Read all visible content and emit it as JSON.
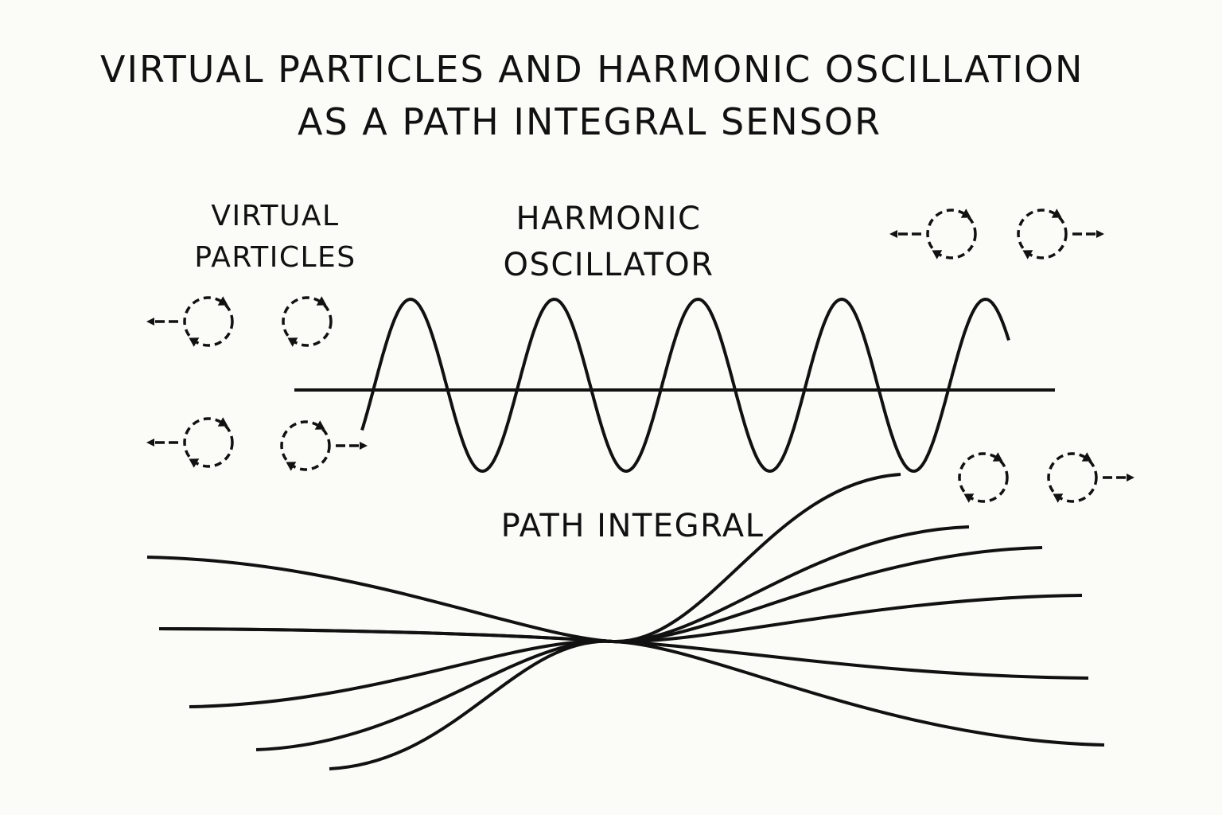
{
  "title": {
    "line1": "VIRTUAL PARTICLES AND HARMONIC OSCILLATION",
    "line2": "AS A PATH INTEGRAL SENSOR"
  },
  "labels": {
    "virtual_particles_line1": "VIRTUAL",
    "virtual_particles_line2": "PARTICLES",
    "harmonic_oscillator_line1": "HARMONIC",
    "harmonic_oscillator_line2": "OSCILLATOR",
    "path_integral": "PATH INTEGRAL"
  },
  "colors": {
    "background": "#fbfbf8",
    "ink": "#111111"
  },
  "icons": {
    "virtual_particle": "dashed-circle-with-circular-arrows-icon",
    "emission": "straight-arrow-icon"
  }
}
